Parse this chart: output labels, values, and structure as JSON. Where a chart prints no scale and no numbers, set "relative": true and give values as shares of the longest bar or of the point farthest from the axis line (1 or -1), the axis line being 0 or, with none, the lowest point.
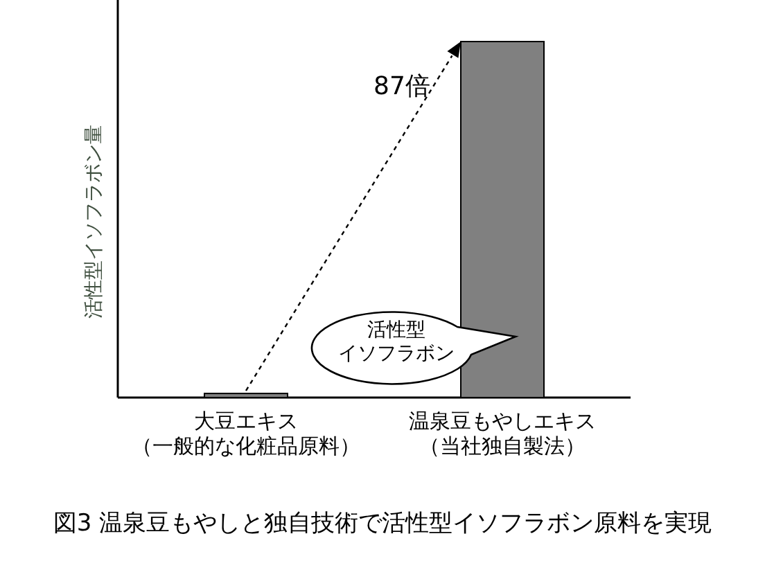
{
  "chart_data": {
    "type": "bar",
    "title": "図3  温泉豆もやしと独自技術で活性型イソフラボン原料を実現",
    "ylabel": "活性型イソフラボン量",
    "categories": [
      "大豆エキス（一般的な化粧品原料）",
      "温泉豆もやしエキス（当社独自製法）"
    ],
    "values": [
      0.0115,
      1
    ],
    "color": "#808080",
    "relative": true,
    "annotations": [
      "87倍",
      "活性型イソフラボン"
    ]
  }
}
